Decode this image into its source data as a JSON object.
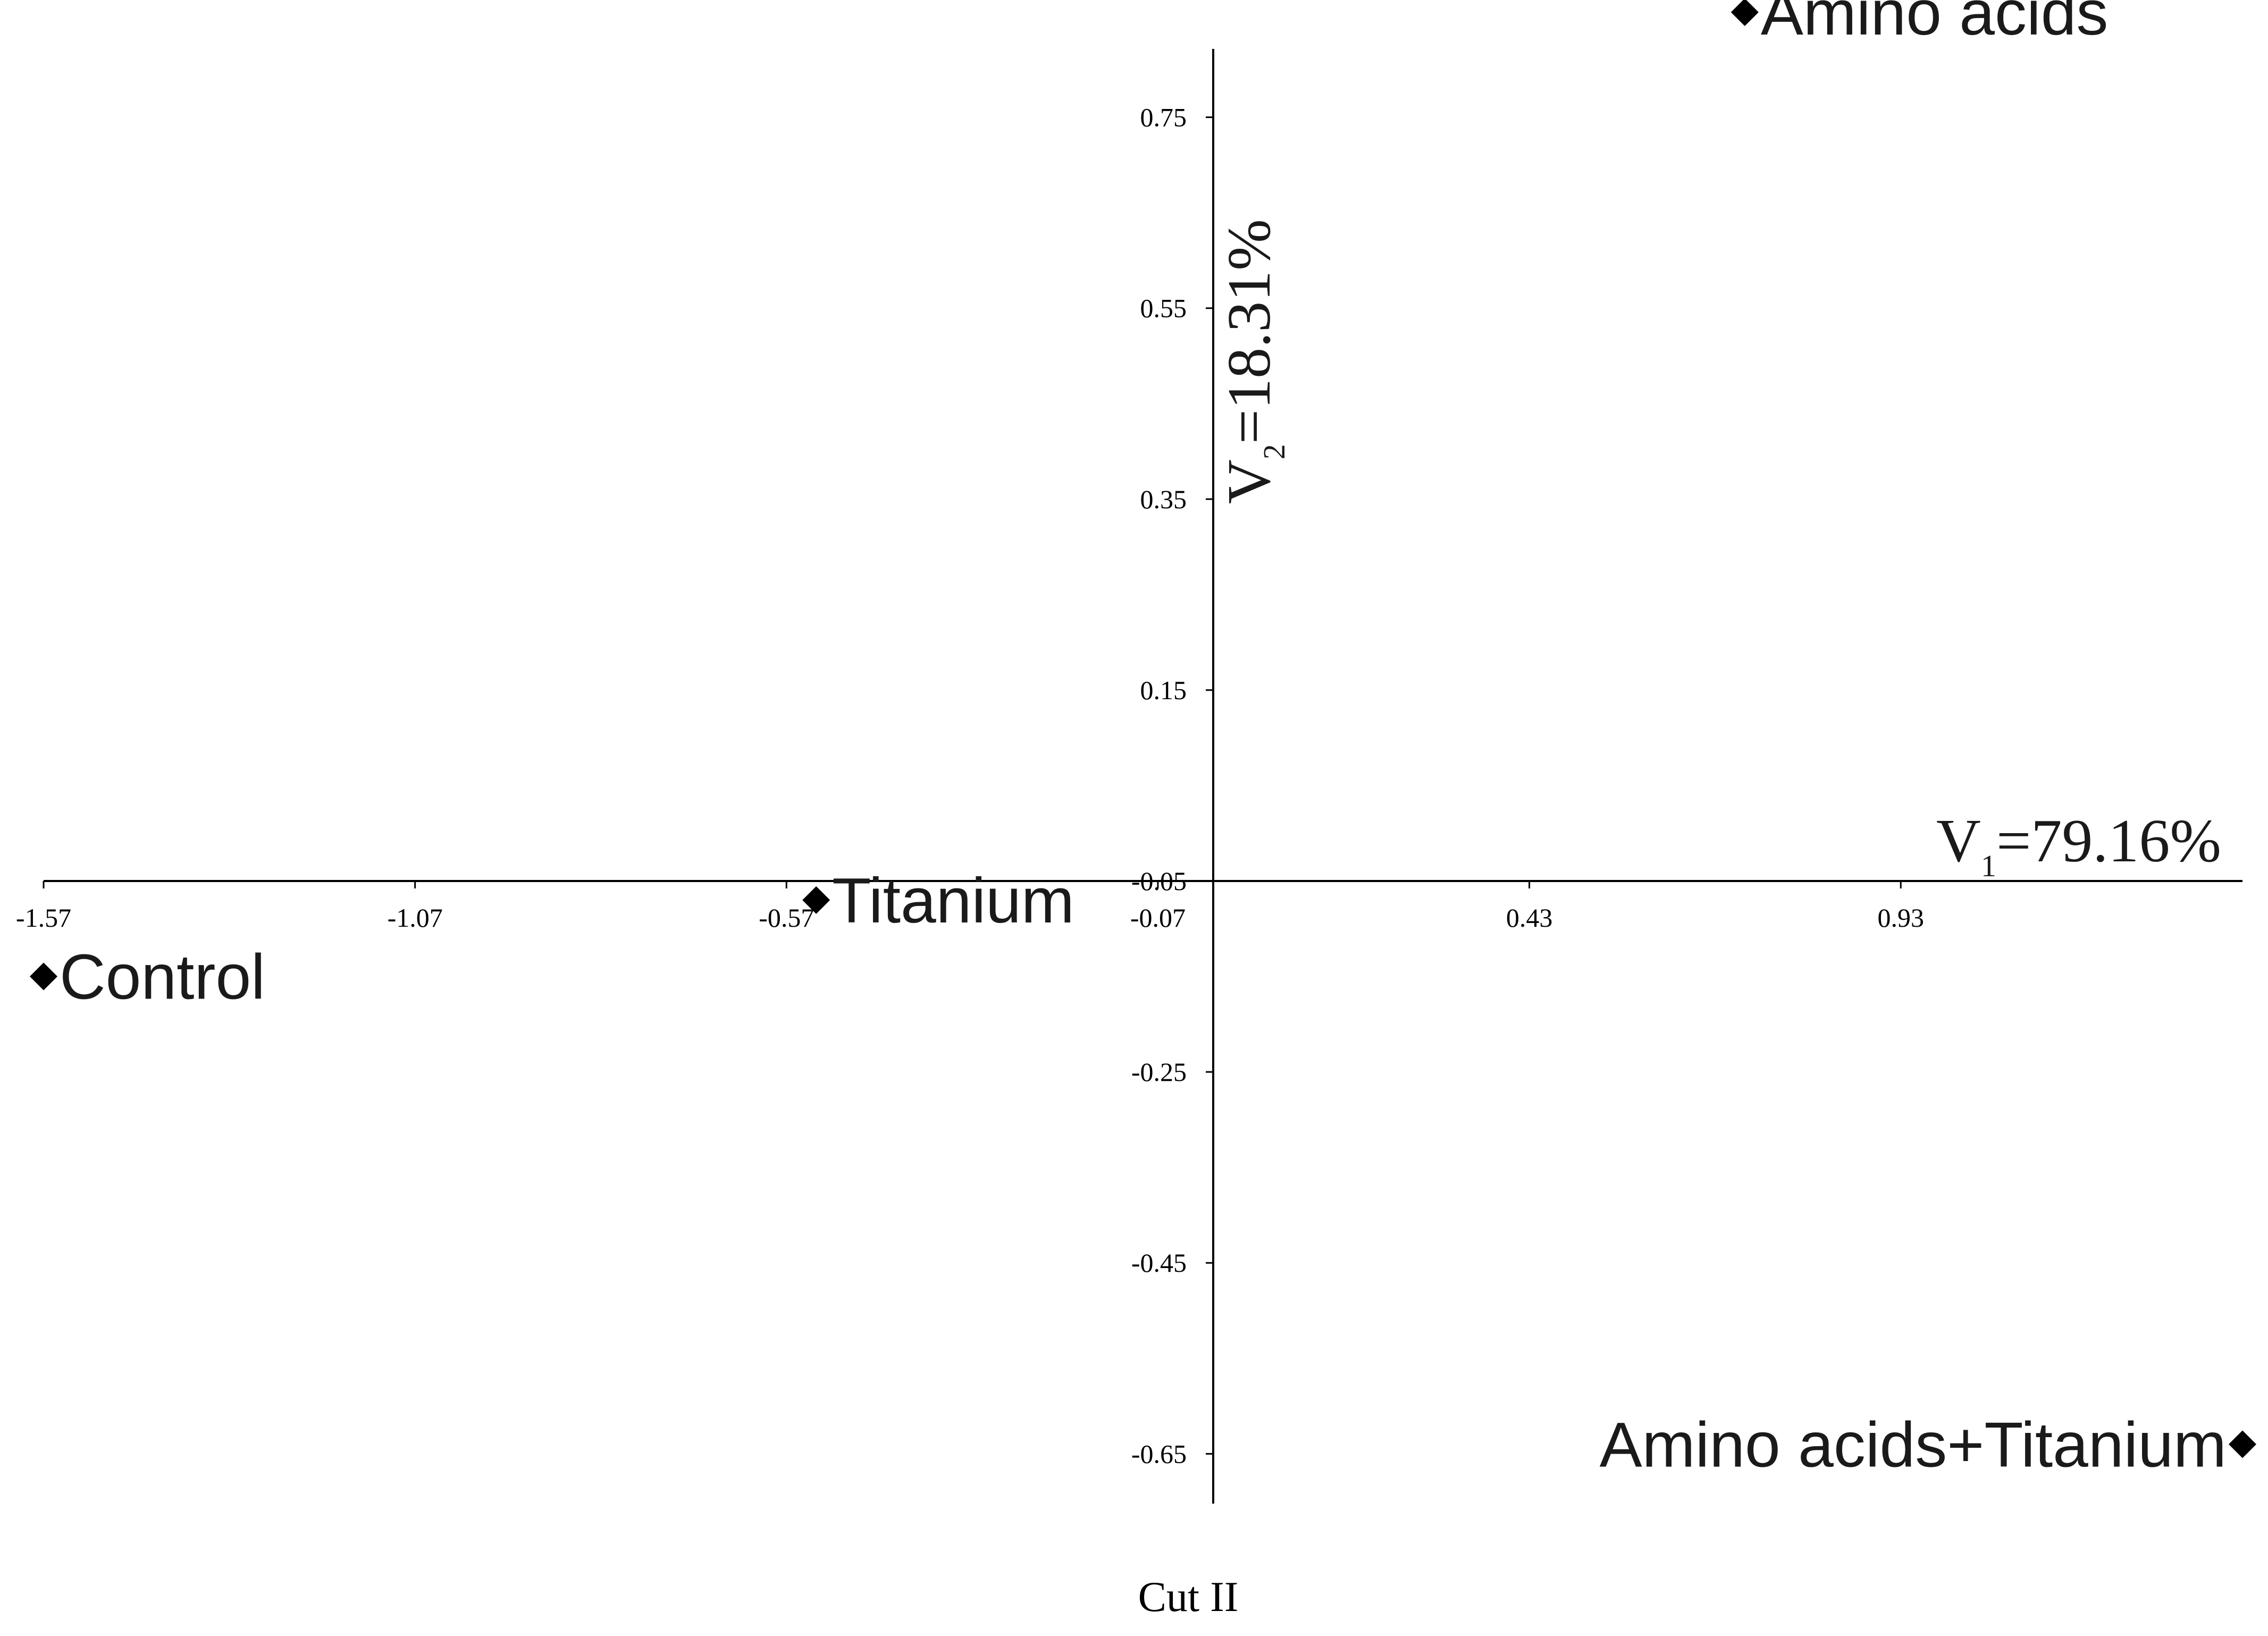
{
  "chart_data": {
    "type": "scatter",
    "title": "",
    "caption": "Cut II",
    "x_axis": {
      "label_main": "V",
      "label_sub": "1",
      "label_rest": "=79.16%",
      "ticks": [
        "-1.57",
        "-1.07",
        "-0.57",
        "-0.07",
        "0.43",
        "0.93"
      ],
      "xlim": [
        -1.57,
        1.39
      ]
    },
    "y_axis": {
      "label_main": "V",
      "label_sub": "2",
      "label_rest": "=18.31%",
      "ticks": [
        "0.75",
        "0.55",
        "0.35",
        "0.15",
        "-0.05",
        "-0.25",
        "-0.45",
        "-0.65"
      ],
      "ylim": [
        -0.65,
        0.86
      ]
    },
    "points": [
      {
        "label": "Amino acids",
        "x": 0.72,
        "y": 0.86
      },
      {
        "label": "Titanium",
        "x": -0.53,
        "y": -0.07
      },
      {
        "label": "Control",
        "x": -1.57,
        "y": -0.15
      },
      {
        "label": "Amino acids+Titanium",
        "x": 1.39,
        "y": -0.64
      }
    ],
    "marker": "diamond",
    "marker_color": "#000000",
    "grid": false,
    "legend": "none"
  }
}
